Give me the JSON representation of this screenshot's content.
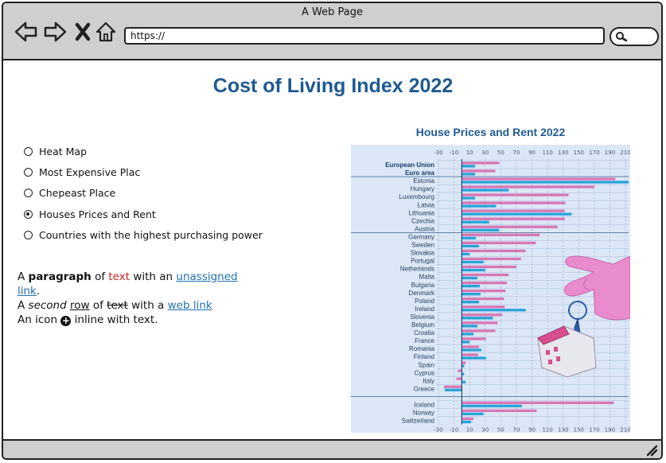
{
  "window": {
    "title": "A Web Page"
  },
  "toolbar": {
    "url": "https://",
    "icons": [
      "back-arrow-icon",
      "forward-arrow-icon",
      "close-x-icon",
      "home-icon",
      "search-icon"
    ]
  },
  "page": {
    "title": "Cost of Living Index 2022"
  },
  "options": [
    {
      "label": "Heat Map",
      "selected": false
    },
    {
      "label": "Most Expensive Plac",
      "selected": false
    },
    {
      "label": "Chepeast Place",
      "selected": false
    },
    {
      "label": "Houses Prices and Rent",
      "selected": true
    },
    {
      "label": "Countries with the highest purchasing power",
      "selected": false
    }
  ],
  "paragraph": {
    "l1_a": "A ",
    "l1_bold": "paragraph",
    "l1_b": " of ",
    "l1_red": "text",
    "l1_c": " with an ",
    "l1_link": "unassigned link",
    "l1_end": ".",
    "l2_a": "A ",
    "l2_italic": "second",
    "l2_b": " ",
    "l2_under": "row",
    "l2_c": " of ",
    "l2_strike": "text",
    "l2_d": " with a ",
    "l2_link": "web link",
    "l3_a": "An icon ",
    "l3_b": " inline with text."
  },
  "colors": {
    "title": "#1f5a92",
    "link": "#1f6fb5",
    "red_text": "#d42020",
    "chart_bg": "#dbe7f6",
    "bar_pink": "#d977b4",
    "bar_blue": "#29a3da"
  },
  "chart_data": {
    "type": "bar",
    "orientation": "horizontal",
    "title": "House Prices and Rent 2022",
    "x_ticks": [
      -30,
      -10,
      10,
      30,
      50,
      70,
      90,
      110,
      130,
      150,
      170,
      190,
      210
    ],
    "x_tick_labels": [
      "-30",
      "-10",
      "10",
      "30",
      "50",
      "70",
      "90",
      "110",
      "130",
      "150",
      "170",
      "190",
      "210"
    ],
    "xlim": [
      -30,
      214
    ],
    "categories": [
      "European Union",
      "Euro area",
      "Estonia",
      "Hungary",
      "Luxembourg",
      "Latvia",
      "Lithuania",
      "Czechia",
      "Austria",
      "Germany",
      "Sweden",
      "Slovakia",
      "Portugal",
      "Netherlands",
      "Malta",
      "Bulgaria",
      "Denmark",
      "Poland",
      "Ireland",
      "Slovenia",
      "Belgium",
      "Croatia",
      "France",
      "Romania",
      "Finland",
      "Spain",
      "Cyprus",
      "Italy",
      "Greece",
      "Iceland",
      "Norway",
      "Switzerland"
    ],
    "bold_categories": [
      "European Union",
      "Euro area"
    ],
    "series": [
      {
        "values": [
          48,
          43,
          197,
          170,
          137,
          133,
          132,
          132,
          123,
          100,
          95,
          82,
          76,
          70,
          60,
          58,
          56,
          54,
          55,
          52,
          46,
          43,
          31,
          22,
          21,
          5,
          -5,
          -7,
          -23,
          195,
          96,
          15
        ]
      },
      {
        "values": [
          17,
          17,
          214,
          60,
          17,
          44,
          141,
          35,
          48,
          18,
          22,
          10,
          28,
          30,
          20,
          23,
          24,
          22,
          82,
          40,
          20,
          15,
          10,
          25,
          31,
          3,
          3,
          5,
          -22,
          77,
          28,
          12
        ]
      }
    ]
  }
}
